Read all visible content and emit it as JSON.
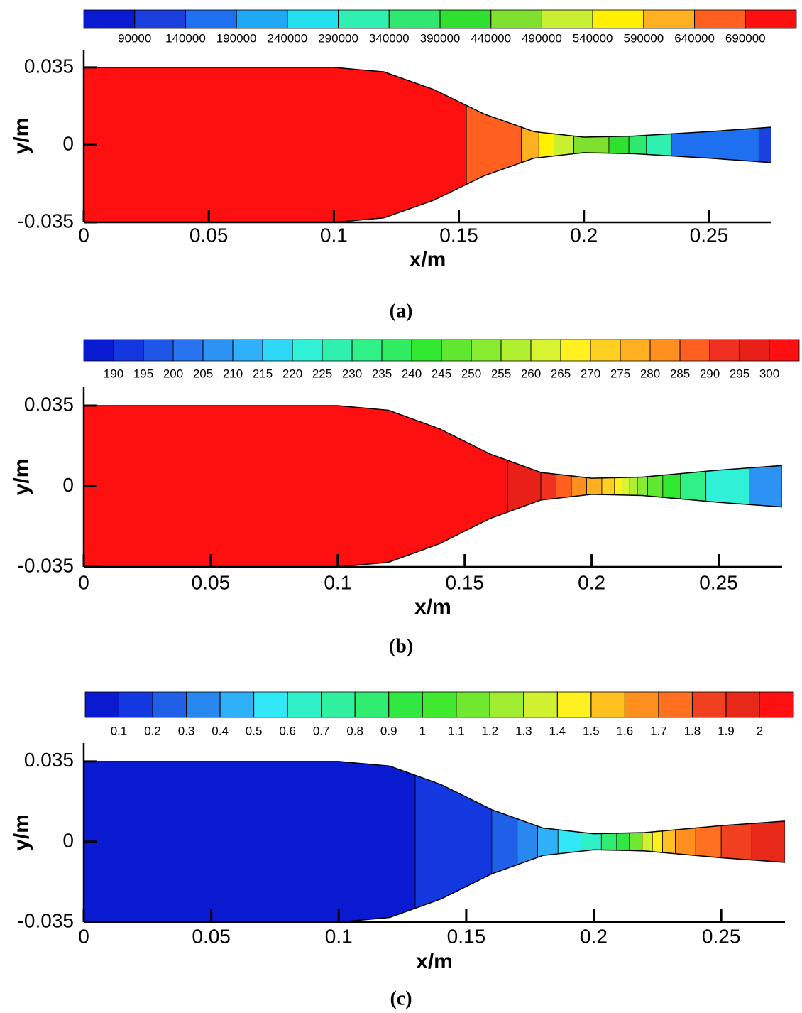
{
  "chart_data": [
    {
      "type": "contour",
      "caption": "(a)",
      "x_label": "x/m",
      "y_label": "y/m",
      "xlim": [
        0,
        0.275
      ],
      "ylim": [
        -0.035,
        0.043
      ],
      "xticks": [
        0,
        0.05,
        0.1,
        0.15,
        0.2,
        0.25
      ],
      "yticks": [
        -0.035,
        0,
        0.035
      ],
      "colorbar": {
        "ticks": [
          90000,
          140000,
          190000,
          240000,
          290000,
          340000,
          390000,
          440000,
          490000,
          540000,
          590000,
          640000,
          690000
        ],
        "colors": [
          "#0a1ad0",
          "#1c40e0",
          "#1e70f0",
          "#1ea8f5",
          "#22e0f0",
          "#2ef0b0",
          "#2ee870",
          "#30e030",
          "#80e030",
          "#c8f030",
          "#fff000",
          "#ffb020",
          "#ff6020",
          "#ff1010"
        ]
      },
      "wall": {
        "x": [
          0,
          0.1,
          0.12,
          0.14,
          0.16,
          0.18,
          0.2,
          0.22,
          0.25,
          0.275
        ],
        "y": [
          0.035,
          0.035,
          0.033,
          0.025,
          0.014,
          0.006,
          0.0035,
          0.004,
          0.006,
          0.008
        ]
      },
      "field": {
        "edges": [
          0,
          0.153,
          0.175,
          0.182,
          0.188,
          0.196,
          0.21,
          0.218,
          0.225,
          0.235,
          0.27,
          0.275
        ],
        "values": [
          700000,
          650000,
          600000,
          550000,
          500000,
          450000,
          400000,
          350000,
          300000,
          150000,
          100000
        ]
      }
    },
    {
      "type": "contour",
      "caption": "(b)",
      "x_label": "x/m",
      "y_label": "y/m",
      "xlim": [
        0,
        0.275
      ],
      "ylim": [
        -0.035,
        0.043
      ],
      "xticks": [
        0,
        0.05,
        0.1,
        0.15,
        0.2,
        0.25
      ],
      "yticks": [
        -0.035,
        0,
        0.035
      ],
      "colorbar": {
        "ticks": [
          190,
          195,
          200,
          205,
          210,
          215,
          220,
          225,
          230,
          235,
          240,
          245,
          250,
          255,
          260,
          265,
          270,
          275,
          280,
          285,
          290,
          295,
          300
        ],
        "colors": [
          "#0a1ad0",
          "#1438e0",
          "#1e56e8",
          "#2874f0",
          "#2c92f4",
          "#30b0f8",
          "#30d8f8",
          "#30f0d8",
          "#30f0b0",
          "#30f088",
          "#30ec60",
          "#30e830",
          "#60e830",
          "#88ec30",
          "#b0f030",
          "#d8f430",
          "#fff020",
          "#ffd020",
          "#ffb020",
          "#ff9020",
          "#ff6020",
          "#f03020",
          "#e82018",
          "#ff1010"
        ]
      },
      "wall": {
        "x": [
          0,
          0.1,
          0.12,
          0.14,
          0.16,
          0.18,
          0.2,
          0.22,
          0.25,
          0.275
        ],
        "y": [
          0.035,
          0.035,
          0.033,
          0.025,
          0.014,
          0.006,
          0.0035,
          0.004,
          0.007,
          0.009
        ]
      },
      "field": {
        "edges": [
          0,
          0.167,
          0.18,
          0.186,
          0.192,
          0.198,
          0.204,
          0.209,
          0.212,
          0.215,
          0.218,
          0.222,
          0.228,
          0.235,
          0.245,
          0.262,
          0.275
        ],
        "values": [
          302,
          297,
          292,
          287,
          282,
          277,
          272,
          267,
          262,
          257,
          252,
          247,
          242,
          232,
          222,
          207
        ]
      }
    },
    {
      "type": "contour",
      "caption": "(c)",
      "x_label": "x/m",
      "y_label": "y/m",
      "xlim": [
        0,
        0.275
      ],
      "ylim": [
        -0.035,
        0.043
      ],
      "xticks": [
        0,
        0.05,
        0.1,
        0.15,
        0.2,
        0.25
      ],
      "yticks": [
        -0.035,
        0,
        0.035
      ],
      "colorbar": {
        "ticks": [
          0.1,
          0.2,
          0.3,
          0.4,
          0.5,
          0.6,
          0.7,
          0.8,
          0.9,
          1,
          1.1,
          1.2,
          1.3,
          1.4,
          1.5,
          1.6,
          1.7,
          1.8,
          1.9,
          2
        ],
        "colors": [
          "#0a1ad0",
          "#1438e0",
          "#2060e8",
          "#2888f0",
          "#30b0f8",
          "#30e8f8",
          "#30f0c8",
          "#30f0a0",
          "#30ec70",
          "#30e840",
          "#40e830",
          "#70e830",
          "#a0ec30",
          "#d0f030",
          "#fff020",
          "#ffc020",
          "#ff9020",
          "#ff7020",
          "#f04020",
          "#e82818",
          "#ff1010"
        ]
      },
      "wall": {
        "x": [
          0,
          0.1,
          0.12,
          0.14,
          0.16,
          0.18,
          0.2,
          0.22,
          0.25,
          0.275
        ],
        "y": [
          0.035,
          0.035,
          0.033,
          0.025,
          0.014,
          0.006,
          0.0035,
          0.004,
          0.007,
          0.009
        ]
      },
      "field": {
        "edges": [
          0,
          0.13,
          0.16,
          0.17,
          0.178,
          0.186,
          0.195,
          0.203,
          0.209,
          0.214,
          0.219,
          0.223,
          0.227,
          0.232,
          0.24,
          0.25,
          0.262,
          0.275
        ],
        "values": [
          0.05,
          0.15,
          0.25,
          0.35,
          0.45,
          0.55,
          0.65,
          0.85,
          0.95,
          1.15,
          1.35,
          1.45,
          1.55,
          1.65,
          1.75,
          1.85,
          1.95
        ]
      }
    }
  ]
}
